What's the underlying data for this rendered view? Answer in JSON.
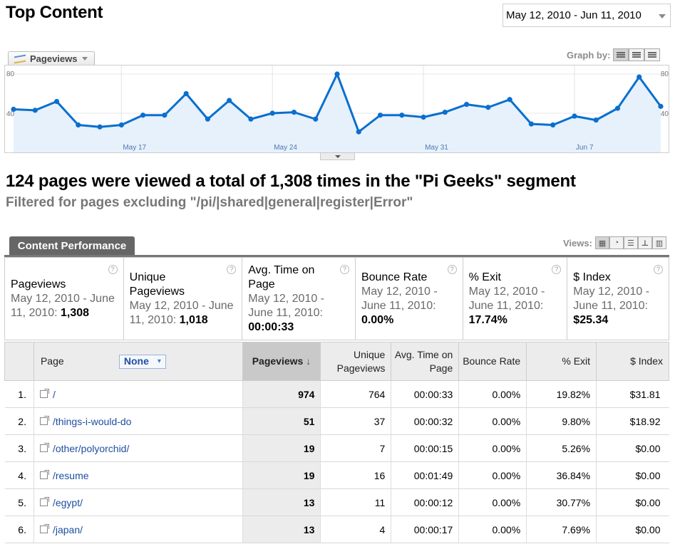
{
  "header": {
    "title": "Top Content",
    "date_range": "May 12, 2010 - Jun 11, 2010"
  },
  "graph": {
    "metric_label": "Pageviews",
    "graph_by_label": "Graph by:",
    "y_left_top": "80",
    "y_left_mid": "40",
    "y_right_top": "80",
    "y_right_mid": "40",
    "x_labels": [
      "May 17",
      "May 24",
      "May 31",
      "Jun 7"
    ],
    "line_color": "#0a6fce",
    "fill_color": "#e6f1fb"
  },
  "chart_data": {
    "type": "area",
    "series": [
      {
        "name": "Pageviews",
        "values": [
          44,
          43,
          52,
          28,
          26,
          28,
          38,
          38,
          60,
          34,
          53,
          34,
          40,
          41,
          34,
          80,
          21,
          38,
          38,
          36,
          41,
          49,
          46,
          54,
          29,
          28,
          37,
          33,
          45,
          77,
          47
        ]
      }
    ],
    "ylim": [
      0,
      80
    ],
    "x_ticks": [
      "May 17",
      "May 24",
      "May 31",
      "Jun 7"
    ]
  },
  "summary": {
    "headline": "124 pages were viewed a total of 1,308 times in the \"Pi Geeks\" segment",
    "filter": "Filtered for pages excluding \"/pi/|shared|general|register|Error\""
  },
  "performance": {
    "tab_label": "Content Performance",
    "views_label": "Views:"
  },
  "scorecard": [
    {
      "label": "Pageviews",
      "sub": "May 12, 2010 - June 11, 2010:",
      "value": "1,308"
    },
    {
      "label": "Unique Pageviews",
      "sub": "May 12, 2010 - June 11, 2010:",
      "value": "1,018"
    },
    {
      "label": "Avg. Time on Page",
      "sub": "May 12, 2010 - June 11, 2010:",
      "value": "00:00:33"
    },
    {
      "label": "Bounce Rate",
      "sub": "May 12, 2010 - June 11, 2010:",
      "value": "0.00%"
    },
    {
      "label": "% Exit",
      "sub": "May 12, 2010 - June 11, 2010:",
      "value": "17.74%"
    },
    {
      "label": "$ Index",
      "sub": "May 12, 2010 - June 11, 2010:",
      "value": "$25.34"
    }
  ],
  "table": {
    "headers": {
      "page": "Page",
      "segment": "None",
      "pageviews": "Pageviews",
      "unique": "Unique Pageviews",
      "avg_time": "Avg. Time on Page",
      "bounce": "Bounce Rate",
      "exit": "% Exit",
      "index": "$ Index"
    },
    "rows": [
      {
        "n": "1.",
        "page": "/",
        "pageviews": "974",
        "unique": "764",
        "avg_time": "00:00:33",
        "bounce": "0.00%",
        "exit": "19.82%",
        "index": "$31.81"
      },
      {
        "n": "2.",
        "page": "/things-i-would-do",
        "pageviews": "51",
        "unique": "37",
        "avg_time": "00:00:32",
        "bounce": "0.00%",
        "exit": "9.80%",
        "index": "$18.92"
      },
      {
        "n": "3.",
        "page": "/other/polyorchid/",
        "pageviews": "19",
        "unique": "7",
        "avg_time": "00:00:15",
        "bounce": "0.00%",
        "exit": "5.26%",
        "index": "$0.00"
      },
      {
        "n": "4.",
        "page": "/resume",
        "pageviews": "19",
        "unique": "16",
        "avg_time": "00:01:49",
        "bounce": "0.00%",
        "exit": "36.84%",
        "index": "$0.00"
      },
      {
        "n": "5.",
        "page": "/egypt/",
        "pageviews": "13",
        "unique": "11",
        "avg_time": "00:00:12",
        "bounce": "0.00%",
        "exit": "30.77%",
        "index": "$0.00"
      },
      {
        "n": "6.",
        "page": "/japan/",
        "pageviews": "13",
        "unique": "4",
        "avg_time": "00:00:17",
        "bounce": "0.00%",
        "exit": "7.69%",
        "index": "$0.00"
      }
    ]
  }
}
